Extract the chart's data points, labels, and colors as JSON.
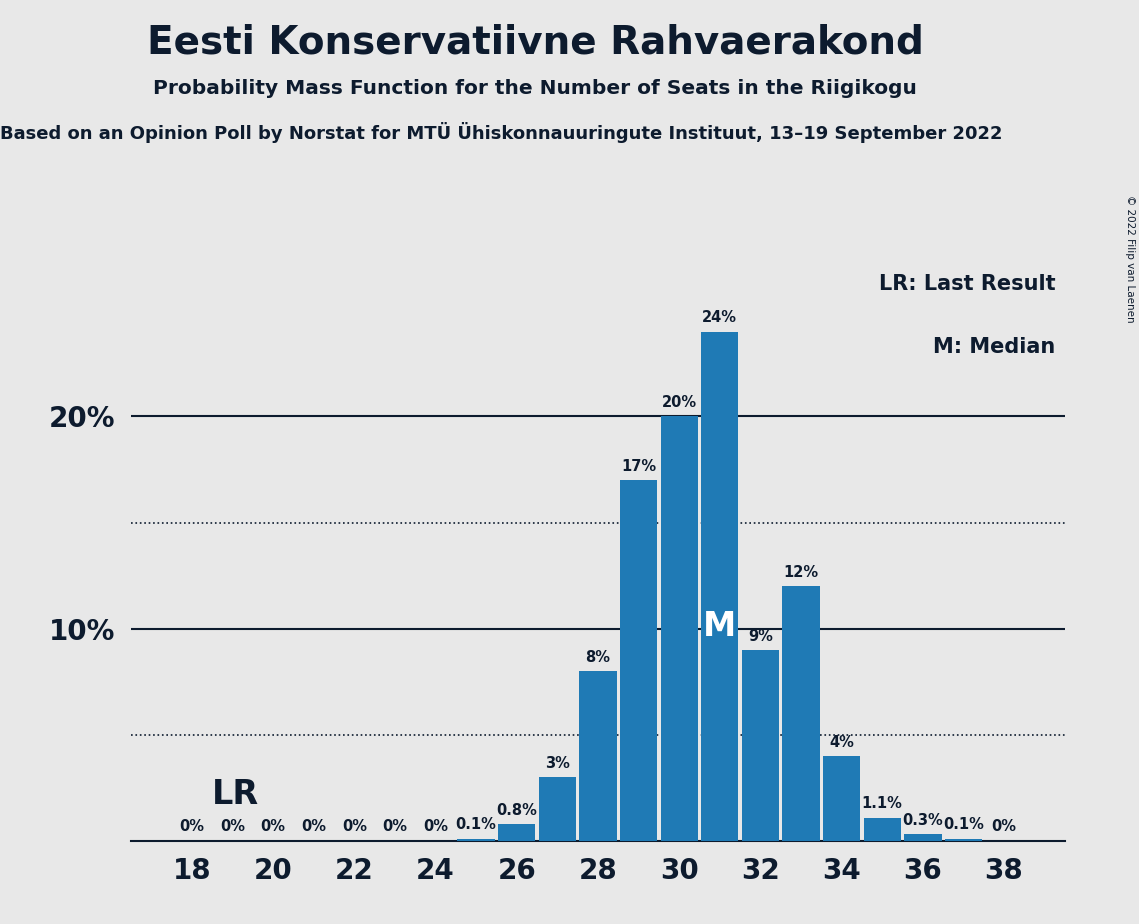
{
  "title": "Eesti Konservatiivne Rahvaerakond",
  "subtitle": "Probability Mass Function for the Number of Seats in the Riigikogu",
  "subtitle2": "Based on an Opinion Poll by Norstat for MTÜ Ühiskonnauuringute Instituut, 13–19 September 2022",
  "copyright": "© 2022 Filip van Laenen",
  "seats": [
    18,
    19,
    20,
    21,
    22,
    23,
    24,
    25,
    26,
    27,
    28,
    29,
    30,
    31,
    32,
    33,
    34,
    35,
    36,
    37,
    38
  ],
  "probabilities": [
    0.0,
    0.0,
    0.0,
    0.0,
    0.0,
    0.0,
    0.0,
    0.1,
    0.8,
    3.0,
    8.0,
    17.0,
    20.0,
    24.0,
    9.0,
    12.0,
    4.0,
    1.1,
    0.3,
    0.1,
    0.0
  ],
  "labels": [
    "0%",
    "0%",
    "0%",
    "0%",
    "0%",
    "0%",
    "0%",
    "0.1%",
    "0.8%",
    "3%",
    "8%",
    "17%",
    "20%",
    "24%",
    "9%",
    "12%",
    "4%",
    "1.1%",
    "0.3%",
    "0.1%",
    "0%"
  ],
  "bar_color": "#1f7ab5",
  "bg_color": "#e8e8e8",
  "text_color": "#0d1b2e",
  "median_seat": 31,
  "lr_seat": 25,
  "lr_label": "LR",
  "median_label": "M",
  "dotted_lines": [
    5.0,
    15.0
  ],
  "solid_lines": [
    10.0,
    20.0
  ],
  "ylim": [
    0,
    27
  ],
  "legend_lr": "LR: Last Result",
  "legend_m": "M: Median"
}
